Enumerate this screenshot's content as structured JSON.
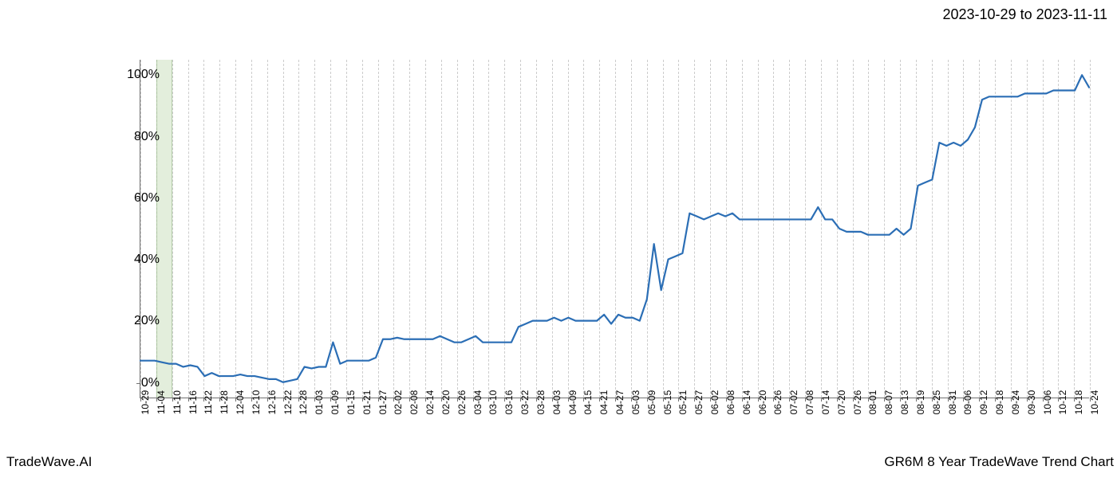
{
  "header": {
    "date_range": "2023-10-29 to 2023-11-11"
  },
  "footer": {
    "left": "TradeWave.AI",
    "right": "GR6M 8 Year TradeWave Trend Chart"
  },
  "chart": {
    "type": "line",
    "background_color": "#ffffff",
    "grid_color": "#cccccc",
    "axis_color": "#707070",
    "line_color": "#2b6eb5",
    "line_width": 2.2,
    "highlight_color": "#d8e8ce",
    "highlight_border": "#9abb8a",
    "highlight_range": [
      "11-04",
      "11-10"
    ],
    "ylim": [
      -5,
      105
    ],
    "y_ticks": [
      0,
      20,
      40,
      60,
      80,
      100
    ],
    "y_tick_labels": [
      "0%",
      "20%",
      "40%",
      "60%",
      "80%",
      "100%"
    ],
    "y_label_fontsize": 16,
    "x_label_fontsize": 12,
    "x_categories": [
      "10-29",
      "11-04",
      "11-10",
      "11-16",
      "11-22",
      "11-28",
      "12-04",
      "12-10",
      "12-16",
      "12-22",
      "12-28",
      "01-03",
      "01-09",
      "01-15",
      "01-21",
      "01-27",
      "02-02",
      "02-08",
      "02-14",
      "02-20",
      "02-26",
      "03-04",
      "03-10",
      "03-16",
      "03-22",
      "03-28",
      "04-03",
      "04-09",
      "04-15",
      "04-21",
      "04-27",
      "05-03",
      "05-09",
      "05-15",
      "05-21",
      "05-27",
      "06-02",
      "06-08",
      "06-14",
      "06-20",
      "06-26",
      "07-02",
      "07-08",
      "07-14",
      "07-20",
      "07-26",
      "08-01",
      "08-07",
      "08-13",
      "08-19",
      "08-25",
      "08-31",
      "09-06",
      "09-12",
      "09-18",
      "09-24",
      "09-30",
      "10-06",
      "10-12",
      "10-18",
      "10-24"
    ],
    "values": [
      7,
      7,
      7,
      6.5,
      6,
      6,
      5,
      5.5,
      5,
      2,
      3,
      2,
      2,
      2,
      2.5,
      2,
      2,
      1.5,
      1,
      1,
      0,
      0.5,
      1,
      5,
      4.5,
      5,
      5,
      13,
      6,
      7,
      7,
      7,
      7,
      8,
      14,
      14,
      14.5,
      14,
      14,
      14,
      14,
      14,
      15,
      14,
      13,
      13,
      14,
      15,
      13,
      13,
      13,
      13,
      13,
      18,
      19,
      20,
      20,
      20,
      21,
      20,
      21,
      20,
      20,
      20,
      20,
      22,
      19,
      22,
      21,
      21,
      20,
      27,
      45,
      30,
      40,
      41,
      42,
      55,
      54,
      53,
      54,
      55,
      54,
      55,
      53,
      53,
      53,
      53,
      53,
      53,
      53,
      53,
      53,
      53,
      53,
      57,
      53,
      53,
      50,
      49,
      49,
      49,
      48,
      48,
      48,
      48,
      50,
      48,
      50,
      64,
      65,
      66,
      78,
      77,
      78,
      77,
      79,
      83,
      92,
      93,
      93,
      93,
      93,
      93,
      94,
      94,
      94,
      94,
      95,
      95,
      95,
      95,
      100,
      96
    ]
  }
}
